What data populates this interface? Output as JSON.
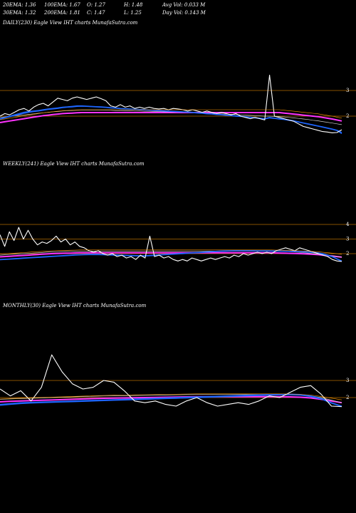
{
  "header": {
    "row1": [
      {
        "label": "20EMA: 1.36"
      },
      {
        "label": "100EMA: 1.67"
      },
      {
        "label": "O: 1.27"
      },
      {
        "label": "H: 1.48"
      },
      {
        "label": "Avg Vol: 0.033 M"
      }
    ],
    "row2": [
      {
        "label": "30EMA: 1.32"
      },
      {
        "label": "200EMA: 1.81"
      },
      {
        "label": "C: 1.47"
      },
      {
        "label": "L: 1.25"
      },
      {
        "label": "Day Vol: 0.143 M"
      }
    ]
  },
  "colors": {
    "background": "#000000",
    "price": "#ffffff",
    "ema_fast": "#1e66ff",
    "ema_slow": "#ff33ff",
    "ema_mid": "#ff9900",
    "ema_long": "#cfcfcf",
    "level_line": "#b36b00"
  },
  "chart_data": [
    {
      "type": "line",
      "title": "DAILY(230) Eagle  View  IHT charts MunafaSutra.com",
      "yticks": [
        "3",
        "2"
      ],
      "level_lines": [
        3.0,
        2.0
      ],
      "ylim": [
        1.1,
        4.2
      ],
      "series": [
        {
          "values": [
            2.0,
            2.1,
            2.05,
            2.15,
            2.25,
            2.3,
            2.2,
            2.35,
            2.45,
            2.5,
            2.4,
            2.55,
            2.7,
            2.65,
            2.6,
            2.7,
            2.75,
            2.7,
            2.65,
            2.7,
            2.75,
            2.68,
            2.6,
            2.4,
            2.35,
            2.45,
            2.35,
            2.4,
            2.3,
            2.35,
            2.3,
            2.35,
            2.3,
            2.28,
            2.3,
            2.25,
            2.3,
            2.28,
            2.25,
            2.2,
            2.25,
            2.2,
            2.15,
            2.2,
            2.15,
            2.1,
            2.15,
            2.1,
            2.05,
            2.1,
            2.0,
            1.95,
            1.9,
            1.95,
            1.9,
            1.85,
            3.6,
            2.0,
            1.95,
            1.9,
            1.85,
            1.8,
            1.7,
            1.6,
            1.55,
            1.5,
            1.45,
            1.4,
            1.38,
            1.35,
            1.36,
            1.47
          ]
        },
        {
          "values": [
            1.9,
            1.95,
            2.0,
            2.05,
            2.1,
            2.15,
            2.18,
            2.2,
            2.22,
            2.25,
            2.28,
            2.3,
            2.32,
            2.35,
            2.36,
            2.38,
            2.4,
            2.4,
            2.39,
            2.38,
            2.37,
            2.36,
            2.35,
            2.33,
            2.32,
            2.3,
            2.29,
            2.28,
            2.27,
            2.26,
            2.25,
            2.24,
            2.23,
            2.22,
            2.21,
            2.2,
            2.19,
            2.18,
            2.17,
            2.16,
            2.15,
            2.13,
            2.12,
            2.1,
            2.09,
            2.07,
            2.06,
            2.04,
            2.03,
            2.01,
            2.0,
            1.98,
            1.96,
            1.94,
            1.92,
            1.9,
            1.95,
            1.92,
            1.9,
            1.88,
            1.85,
            1.82,
            1.78,
            1.74,
            1.7,
            1.66,
            1.62,
            1.58,
            1.54,
            1.5,
            1.45,
            1.36
          ]
        },
        {
          "values": [
            1.88,
            1.93,
            1.98,
            2.02,
            2.07,
            2.11,
            2.15,
            2.18,
            2.2,
            2.23,
            2.26,
            2.28,
            2.3,
            2.33,
            2.35,
            2.36,
            2.38,
            2.39,
            2.38,
            2.37,
            2.36,
            2.35,
            2.34,
            2.32,
            2.31,
            2.29,
            2.28,
            2.27,
            2.26,
            2.25,
            2.24,
            2.23,
            2.22,
            2.21,
            2.2,
            2.19,
            2.18,
            2.17,
            2.16,
            2.15,
            2.14,
            2.12,
            2.11,
            2.09,
            2.08,
            2.06,
            2.05,
            2.03,
            2.02,
            2.0,
            1.99,
            1.97,
            1.95,
            1.93,
            1.91,
            1.89,
            1.93,
            1.91,
            1.89,
            1.87,
            1.84,
            1.81,
            1.77,
            1.73,
            1.69,
            1.65,
            1.61,
            1.57,
            1.53,
            1.49,
            1.44,
            1.32
          ]
        },
        {
          "values": [
            1.95,
            1.97,
            1.99,
            2.01,
            2.03,
            2.05,
            2.07,
            2.09,
            2.11,
            2.13,
            2.15,
            2.17,
            2.18,
            2.2,
            2.21,
            2.22,
            2.23,
            2.24,
            2.24,
            2.24,
            2.24,
            2.24,
            2.23,
            2.23,
            2.22,
            2.22,
            2.21,
            2.21,
            2.2,
            2.2,
            2.19,
            2.19,
            2.18,
            2.18,
            2.17,
            2.17,
            2.16,
            2.16,
            2.15,
            2.15,
            2.14,
            2.14,
            2.13,
            2.12,
            2.11,
            2.1,
            2.09,
            2.08,
            2.07,
            2.06,
            2.05,
            2.04,
            2.03,
            2.02,
            2.01,
            2.0,
            2.0,
            1.99,
            1.98,
            1.97,
            1.95,
            1.93,
            1.91,
            1.89,
            1.87,
            1.84,
            1.82,
            1.79,
            1.76,
            1.73,
            1.7,
            1.67
          ]
        },
        {
          "values": [
            1.75,
            1.78,
            1.81,
            1.84,
            1.87,
            1.9,
            1.93,
            1.96,
            1.99,
            2.02,
            2.04,
            2.06,
            2.08,
            2.1,
            2.11,
            2.12,
            2.13,
            2.14,
            2.14,
            2.14,
            2.14,
            2.14,
            2.14,
            2.14,
            2.14,
            2.14,
            2.14,
            2.14,
            2.14,
            2.14,
            2.14,
            2.14,
            2.14,
            2.14,
            2.14,
            2.14,
            2.14,
            2.14,
            2.14,
            2.14,
            2.14,
            2.14,
            2.14,
            2.14,
            2.14,
            2.14,
            2.14,
            2.14,
            2.14,
            2.14,
            2.14,
            2.14,
            2.14,
            2.14,
            2.14,
            2.14,
            2.14,
            2.14,
            2.14,
            2.12,
            2.1,
            2.08,
            2.06,
            2.04,
            2.02,
            2.0,
            1.98,
            1.95,
            1.92,
            1.89,
            1.85,
            1.81
          ]
        }
      ]
    },
    {
      "type": "line",
      "title": "WEEKLY(241) Eagle  View  IHT charts MunafaSutra.com",
      "yticks": [
        "4",
        "3",
        "2"
      ],
      "level_lines": [
        4.0,
        3.0,
        2.0
      ],
      "ylim": [
        1.0,
        5.0
      ],
      "series": [
        {
          "values": [
            3.3,
            2.5,
            3.5,
            2.9,
            3.8,
            3.0,
            3.6,
            3.0,
            2.6,
            2.8,
            2.7,
            2.9,
            3.2,
            2.8,
            3.0,
            2.6,
            2.8,
            2.5,
            2.4,
            2.2,
            2.1,
            2.2,
            2.0,
            1.9,
            2.0,
            1.8,
            1.9,
            1.7,
            1.8,
            1.6,
            1.9,
            1.7,
            3.2,
            1.8,
            1.9,
            1.7,
            1.8,
            1.6,
            1.5,
            1.6,
            1.5,
            1.7,
            1.6,
            1.5,
            1.6,
            1.7,
            1.6,
            1.7,
            1.8,
            1.7,
            1.9,
            1.8,
            2.0,
            1.9,
            2.0,
            2.1,
            2.0,
            2.1,
            2.0,
            2.2,
            2.3,
            2.4,
            2.3,
            2.2,
            2.4,
            2.3,
            2.2,
            2.1,
            2.0,
            1.9,
            1.8,
            1.6,
            1.5,
            1.47
          ]
        },
        {
          "values": [
            1.6,
            1.62,
            1.64,
            1.66,
            1.68,
            1.7,
            1.72,
            1.74,
            1.76,
            1.78,
            1.8,
            1.82,
            1.84,
            1.86,
            1.88,
            1.9,
            1.92,
            1.93,
            1.94,
            1.95,
            1.95,
            1.95,
            1.94,
            1.93,
            1.92,
            1.91,
            1.9,
            1.89,
            1.88,
            1.87,
            1.86,
            1.86,
            1.88,
            1.9,
            1.92,
            1.94,
            1.96,
            1.98,
            2.0,
            2.02,
            2.04,
            2.06,
            2.08,
            2.1,
            2.12,
            2.14,
            2.16,
            2.18,
            2.19,
            2.2,
            2.21,
            2.21,
            2.21,
            2.21,
            2.21,
            2.2,
            2.2,
            2.2,
            2.19,
            2.19,
            2.18,
            2.18,
            2.17,
            2.16,
            2.15,
            2.14,
            2.12,
            2.1,
            2.05,
            2.0,
            1.9,
            1.8,
            1.65,
            1.5
          ]
        },
        {
          "values": [
            1.58,
            1.6,
            1.62,
            1.64,
            1.66,
            1.68,
            1.7,
            1.72,
            1.74,
            1.76,
            1.78,
            1.8,
            1.82,
            1.84,
            1.86,
            1.88,
            1.9,
            1.91,
            1.92,
            1.93,
            1.93,
            1.93,
            1.92,
            1.91,
            1.9,
            1.89,
            1.88,
            1.87,
            1.86,
            1.85,
            1.84,
            1.84,
            1.86,
            1.88,
            1.9,
            1.92,
            1.94,
            1.96,
            1.98,
            2.0,
            2.02,
            2.04,
            2.06,
            2.08,
            2.1,
            2.12,
            2.14,
            2.16,
            2.17,
            2.18,
            2.19,
            2.19,
            2.19,
            2.19,
            2.19,
            2.18,
            2.18,
            2.18,
            2.17,
            2.17,
            2.16,
            2.16,
            2.15,
            2.14,
            2.13,
            2.12,
            2.1,
            2.08,
            2.03,
            1.98,
            1.88,
            1.78,
            1.63,
            1.48
          ]
        },
        {
          "values": [
            1.9,
            1.92,
            1.94,
            1.96,
            1.98,
            2.0,
            2.02,
            2.04,
            2.06,
            2.08,
            2.1,
            2.12,
            2.13,
            2.14,
            2.15,
            2.16,
            2.17,
            2.18,
            2.18,
            2.18,
            2.18,
            2.18,
            2.18,
            2.18,
            2.18,
            2.18,
            2.18,
            2.18,
            2.18,
            2.18,
            2.18,
            2.18,
            2.18,
            2.18,
            2.18,
            2.18,
            2.18,
            2.18,
            2.18,
            2.18,
            2.18,
            2.18,
            2.18,
            2.18,
            2.18,
            2.18,
            2.18,
            2.18,
            2.18,
            2.18,
            2.18,
            2.18,
            2.18,
            2.18,
            2.18,
            2.18,
            2.18,
            2.18,
            2.18,
            2.17,
            2.16,
            2.15,
            2.13,
            2.11,
            2.09,
            2.06,
            2.03,
            2.0,
            1.97,
            1.93,
            1.89,
            1.85,
            1.8,
            1.75
          ]
        },
        {
          "values": [
            1.78,
            1.8,
            1.82,
            1.84,
            1.86,
            1.88,
            1.9,
            1.92,
            1.94,
            1.96,
            1.98,
            2.0,
            2.01,
            2.02,
            2.03,
            2.04,
            2.05,
            2.06,
            2.06,
            2.06,
            2.06,
            2.06,
            2.06,
            2.06,
            2.06,
            2.06,
            2.06,
            2.06,
            2.06,
            2.06,
            2.06,
            2.06,
            2.06,
            2.06,
            2.06,
            2.06,
            2.06,
            2.06,
            2.06,
            2.06,
            2.06,
            2.06,
            2.06,
            2.06,
            2.06,
            2.06,
            2.06,
            2.06,
            2.06,
            2.06,
            2.06,
            2.06,
            2.06,
            2.06,
            2.06,
            2.06,
            2.06,
            2.06,
            2.06,
            2.05,
            2.04,
            2.03,
            2.02,
            2.01,
            2.0,
            1.99,
            1.97,
            1.95,
            1.93,
            1.9,
            1.87,
            1.84,
            1.8,
            1.76
          ]
        }
      ]
    },
    {
      "type": "line",
      "title": "MONTHLY(30) Eagle  View  IHT charts MunafaSutra.com",
      "yticks": [
        "3",
        "2"
      ],
      "level_lines": [
        3.0,
        2.0
      ],
      "ylim": [
        0.0,
        6.5
      ],
      "series": [
        {
          "values": [
            2.5,
            2.1,
            2.4,
            1.8,
            2.6,
            4.5,
            3.5,
            2.8,
            2.5,
            2.6,
            3.0,
            2.9,
            2.4,
            1.8,
            1.7,
            1.8,
            1.6,
            1.5,
            1.8,
            2.0,
            1.7,
            1.5,
            1.6,
            1.7,
            1.6,
            1.8,
            2.1,
            2.0,
            2.3,
            2.6,
            2.7,
            2.2,
            1.5,
            1.47
          ]
        },
        {
          "values": [
            1.6,
            1.65,
            1.7,
            1.72,
            1.74,
            1.76,
            1.78,
            1.8,
            1.82,
            1.84,
            1.86,
            1.88,
            1.9,
            1.92,
            1.94,
            1.96,
            1.98,
            2.0,
            2.02,
            2.04,
            2.06,
            2.08,
            2.1,
            2.12,
            2.14,
            2.16,
            2.18,
            2.2,
            2.2,
            2.18,
            2.1,
            1.95,
            1.7,
            1.5
          ]
        },
        {
          "values": [
            1.55,
            1.6,
            1.65,
            1.68,
            1.7,
            1.72,
            1.74,
            1.76,
            1.78,
            1.8,
            1.82,
            1.84,
            1.86,
            1.88,
            1.9,
            1.92,
            1.94,
            1.96,
            1.98,
            2.0,
            2.02,
            2.04,
            2.06,
            2.08,
            2.1,
            2.12,
            2.14,
            2.16,
            2.16,
            2.14,
            2.06,
            1.92,
            1.68,
            1.48
          ]
        },
        {
          "values": [
            1.9,
            1.92,
            1.94,
            1.96,
            1.98,
            2.0,
            2.02,
            2.04,
            2.06,
            2.08,
            2.09,
            2.1,
            2.11,
            2.12,
            2.13,
            2.14,
            2.15,
            2.16,
            2.17,
            2.18,
            2.18,
            2.18,
            2.18,
            2.18,
            2.18,
            2.18,
            2.18,
            2.18,
            2.17,
            2.15,
            2.1,
            2.0,
            1.85,
            1.7
          ]
        },
        {
          "values": [
            1.75,
            1.78,
            1.8,
            1.82,
            1.84,
            1.86,
            1.88,
            1.9,
            1.92,
            1.94,
            1.96,
            1.97,
            1.98,
            1.99,
            2.0,
            2.01,
            2.02,
            2.03,
            2.04,
            2.05,
            2.05,
            2.05,
            2.05,
            2.05,
            2.05,
            2.05,
            2.05,
            2.05,
            2.04,
            2.02,
            1.98,
            1.9,
            1.8,
            1.7
          ]
        }
      ]
    }
  ]
}
